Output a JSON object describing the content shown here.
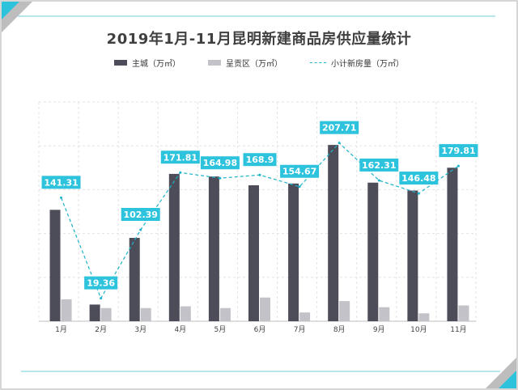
{
  "chart_data": {
    "type": "bar",
    "title": "2019年1月-11月昆明新建商品房供应量统计",
    "categories": [
      "1月",
      "2月",
      "3月",
      "4月",
      "5月",
      "6月",
      "7月",
      "8月",
      "9月",
      "10月",
      "11月"
    ],
    "series": [
      {
        "name": "主城（万㎡）",
        "type": "bar",
        "color": "#4d4d5a",
        "values": [
          127,
          19,
          95,
          168,
          165,
          155,
          157,
          201,
          158,
          149,
          175
        ]
      },
      {
        "name": "呈贡区（万㎡）",
        "type": "bar",
        "color": "#c2c2c8",
        "values": [
          25,
          15,
          15,
          17,
          15,
          27,
          10,
          23,
          16,
          9,
          18
        ]
      },
      {
        "name": "小计新房量（万㎡）",
        "type": "line",
        "color": "#1bb4c9",
        "values": [
          141.31,
          19.36,
          102.39,
          171.81,
          164.98,
          168.9,
          154.67,
          207.71,
          162.31,
          146.48,
          179.81
        ]
      }
    ],
    "data_labels": [
      "141.31",
      "19.36",
      "102.39",
      "171.81",
      "164.98",
      "168.9",
      "154.67",
      "207.71",
      "162.31",
      "146.48",
      "179.81"
    ],
    "ylim": [
      0,
      250
    ],
    "grid": true,
    "legend_position": "top"
  },
  "colors": {
    "accent": "#1bb4c9",
    "label_bg": "#2ec3dd",
    "border": "#c8c8c8"
  }
}
